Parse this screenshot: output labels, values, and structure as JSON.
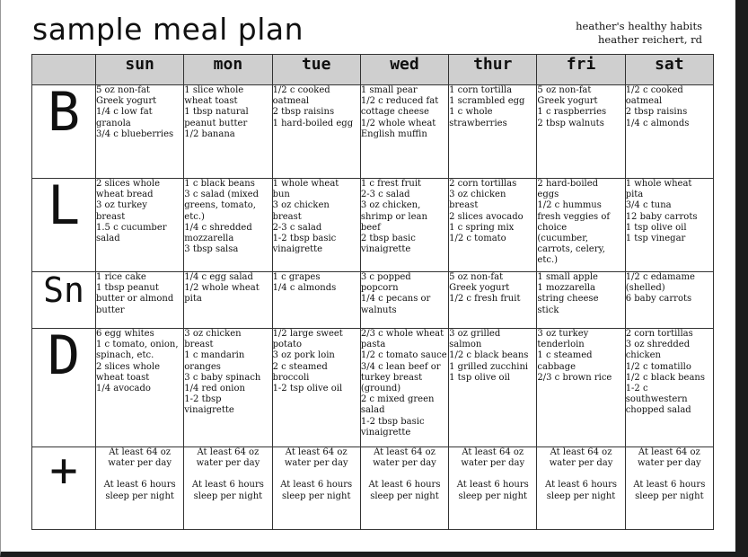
{
  "title": "sample meal plan",
  "byline": {
    "line1": "heather's healthy habits",
    "line2": "heather reichert, rd"
  },
  "days": [
    "sun",
    "mon",
    "tue",
    "wed",
    "thur",
    "fri",
    "sat"
  ],
  "meals": [
    {
      "label": "B",
      "cells": [
        "5 oz non-fat\nGreek yogurt\n1/4 c low fat\ngranola\n3/4 c blueberries",
        "1 slice whole\nwheat toast\n1 tbsp natural\npeanut butter\n1/2 banana",
        "1/2 c cooked\noatmeal\n2 tbsp raisins\n1 hard-boiled egg",
        "1 small pear\n1/2 c reduced fat\ncottage cheese\n1/2 whole wheat\nEnglish muffin",
        "1 corn tortilla\n1 scrambled egg\n1 c whole\nstrawberries",
        "5 oz non-fat\nGreek yogurt\n1 c raspberries\n2 tbsp walnuts",
        "1/2 c cooked\noatmeal\n2 tbsp raisins\n1/4 c almonds"
      ]
    },
    {
      "label": "L",
      "cells": [
        "2 slices whole\nwheat bread\n3 oz turkey\nbreast\n1.5 c cucumber\nsalad",
        "1 c black beans\n3 c salad (mixed\ngreens, tomato,\netc.)\n1/4 c shredded\nmozzarella\n3 tbsp salsa",
        "1 whole wheat\nbun\n3 oz chicken\nbreast\n2-3 c salad\n1-2 tbsp basic\nvinaigrette",
        "1 c frest fruit\n2-3 c salad\n3 oz chicken,\nshrimp or lean\nbeef\n2 tbsp basic\nvinaigrette",
        "2 corn tortillas\n3 oz chicken\nbreast\n2 slices avocado\n1 c spring mix\n1/2 c tomato",
        "2 hard-boiled\neggs\n1/2  c hummus\nfresh veggies of\nchoice\n(cucumber,\ncarrots, celery,\netc.)",
        "1 whole wheat\npita\n3/4 c tuna\n12 baby carrots\n1 tsp olive oil\n1 tsp vinegar"
      ]
    },
    {
      "label": "Sn",
      "cells": [
        "1 rice cake\n1 tbsp peanut\nbutter or almond\nbutter",
        "1/4 c egg salad\n1/2 whole wheat\npita",
        "1 c grapes\n1/4 c almonds",
        "3 c popped\npopcorn\n1/4 c pecans or\nwalnuts",
        "5 oz non-fat\nGreek yogurt\n1/2 c fresh fruit",
        "1 small apple\n1 mozzarella\nstring cheese\nstick",
        "1/2 c edamame\n(shelled)\n6 baby carrots"
      ]
    },
    {
      "label": "D",
      "cells": [
        "6 egg whites\n1 c tomato, onion,\nspinach, etc.\n2 slices whole\nwheat toast\n1/4 avocado",
        "3 oz chicken\nbreast\n1 c mandarin\noranges\n3 c baby spinach\n1/4 red onion\n1-2 tbsp\nvinaigrette",
        "1/2 large sweet\npotato\n3 oz pork loin\n2 c steamed\nbroccoli\n1-2 tsp olive oil",
        "2/3 c whole wheat\npasta\n1/2 c tomato sauce\n3/4 c lean beef or\nturkey breast\n(ground)\n2 c mixed green\nsalad\n1-2 tbsp basic\nvinaigrette",
        "3 oz grilled\nsalmon\n1/2 c black beans\n1 grilled zucchini\n1 tsp olive oil",
        "3 oz turkey\ntenderloin\n1 c steamed\ncabbage\n2/3 c brown rice",
        "2 corn tortillas\n3 oz shredded\nchicken\n1/2 c tomatillo\n1/2 c black beans\n1-2 c\nsouthwestern\nchopped salad"
      ]
    }
  ],
  "extras": {
    "label": "+",
    "water": "At least 64 oz\nwater per day",
    "sleep": "At least 6 hours\nsleep per night"
  }
}
